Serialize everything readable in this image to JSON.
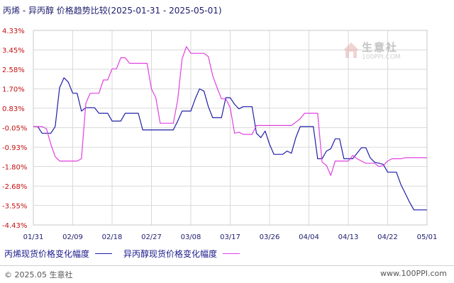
{
  "title": "丙烯 - 异丙醇 价格趋势比较(2025-01-31 - 2025-05-01)",
  "watermark": {
    "name": "生意社",
    "url": "100PPI.COM"
  },
  "footer": {
    "copyright": "© 2025.05 生意社",
    "site": "www.100PPI.com"
  },
  "colors": {
    "series_0": "#1f1fa8",
    "series_1": "#e040e0",
    "grid": "#d9d9d9",
    "ytick": "#c41010",
    "xtick": "#1c1c6e"
  },
  "chart_data": {
    "type": "line",
    "title": "丙烯 - 异丙醇 价格趋势比较(2025-01-31 - 2025-05-01)",
    "ylim": [
      -4.43,
      4.33
    ],
    "yticks": [
      "4.33%",
      "3.45%",
      "2.58%",
      "1.70%",
      "0.83%",
      "-0.05%",
      "-0.93%",
      "-1.80%",
      "-2.68%",
      "-3.55%",
      "-4.43%"
    ],
    "ytick_values": [
      4.33,
      3.45,
      2.58,
      1.7,
      0.83,
      -0.05,
      -0.93,
      -1.8,
      -2.68,
      -3.55,
      -4.43
    ],
    "xrange": [
      "2025-01-31",
      "2025-05-01"
    ],
    "xticks": [
      "01/31",
      "02/09",
      "02/18",
      "02/27",
      "03/08",
      "03/17",
      "03/26",
      "04/04",
      "04/13",
      "04/22",
      "05/01"
    ],
    "xtick_dates": [
      "2025-01-31",
      "2025-02-09",
      "2025-02-18",
      "2025-02-27",
      "2025-03-08",
      "2025-03-17",
      "2025-03-26",
      "2025-04-04",
      "2025-04-13",
      "2025-04-22",
      "2025-05-01"
    ],
    "grid": true,
    "legend_position": "bottom",
    "series": [
      {
        "name": "丙烯现货价格变化幅度",
        "points": [
          [
            "2025-01-31",
            0.0
          ],
          [
            "2025-02-01",
            0.0
          ],
          [
            "2025-02-02",
            -0.3
          ],
          [
            "2025-02-04",
            -0.3
          ],
          [
            "2025-02-05",
            0.0
          ],
          [
            "2025-02-06",
            1.75
          ],
          [
            "2025-02-07",
            2.2
          ],
          [
            "2025-02-08",
            2.0
          ],
          [
            "2025-02-09",
            1.5
          ],
          [
            "2025-02-10",
            1.5
          ],
          [
            "2025-02-11",
            0.7
          ],
          [
            "2025-02-12",
            0.85
          ],
          [
            "2025-02-14",
            0.85
          ],
          [
            "2025-02-15",
            0.6
          ],
          [
            "2025-02-17",
            0.6
          ],
          [
            "2025-02-18",
            0.25
          ],
          [
            "2025-02-20",
            0.25
          ],
          [
            "2025-02-21",
            0.6
          ],
          [
            "2025-02-24",
            0.6
          ],
          [
            "2025-02-25",
            -0.15
          ],
          [
            "2025-03-04",
            -0.15
          ],
          [
            "2025-03-05",
            0.25
          ],
          [
            "2025-03-06",
            0.7
          ],
          [
            "2025-03-08",
            0.7
          ],
          [
            "2025-03-09",
            1.25
          ],
          [
            "2025-03-10",
            1.7
          ],
          [
            "2025-03-11",
            1.6
          ],
          [
            "2025-03-12",
            0.9
          ],
          [
            "2025-03-13",
            0.4
          ],
          [
            "2025-03-15",
            0.4
          ],
          [
            "2025-03-16",
            1.3
          ],
          [
            "2025-03-17",
            1.3
          ],
          [
            "2025-03-18",
            1.0
          ],
          [
            "2025-03-19",
            0.8
          ],
          [
            "2025-03-20",
            0.9
          ],
          [
            "2025-03-22",
            0.9
          ],
          [
            "2025-03-23",
            -0.3
          ],
          [
            "2025-03-24",
            -0.5
          ],
          [
            "2025-03-25",
            -0.2
          ],
          [
            "2025-03-26",
            -0.8
          ],
          [
            "2025-03-27",
            -1.25
          ],
          [
            "2025-03-29",
            -1.25
          ],
          [
            "2025-03-30",
            -1.1
          ],
          [
            "2025-03-31",
            -1.2
          ],
          [
            "2025-04-01",
            -0.5
          ],
          [
            "2025-04-02",
            0.0
          ],
          [
            "2025-04-05",
            0.0
          ],
          [
            "2025-04-06",
            -1.45
          ],
          [
            "2025-04-07",
            -1.45
          ],
          [
            "2025-04-08",
            -1.1
          ],
          [
            "2025-04-09",
            -1.0
          ],
          [
            "2025-04-10",
            -0.55
          ],
          [
            "2025-04-11",
            -0.55
          ],
          [
            "2025-04-12",
            -1.45
          ],
          [
            "2025-04-14",
            -1.45
          ],
          [
            "2025-04-15",
            -1.2
          ],
          [
            "2025-04-16",
            -0.95
          ],
          [
            "2025-04-17",
            -0.95
          ],
          [
            "2025-04-18",
            -1.4
          ],
          [
            "2025-04-19",
            -1.6
          ],
          [
            "2025-04-21",
            -1.7
          ],
          [
            "2025-04-22",
            -2.05
          ],
          [
            "2025-04-24",
            -2.05
          ],
          [
            "2025-04-25",
            -2.6
          ],
          [
            "2025-04-26",
            -3.0
          ],
          [
            "2025-04-27",
            -3.4
          ],
          [
            "2025-04-28",
            -3.75
          ],
          [
            "2025-05-01",
            -3.75
          ]
        ]
      },
      {
        "name": "异丙醇现货价格变化幅度",
        "points": [
          [
            "2025-01-31",
            0.0
          ],
          [
            "2025-02-02",
            0.0
          ],
          [
            "2025-02-03",
            -0.1
          ],
          [
            "2025-02-04",
            -0.8
          ],
          [
            "2025-02-05",
            -1.35
          ],
          [
            "2025-02-06",
            -1.55
          ],
          [
            "2025-02-09",
            -1.55
          ],
          [
            "2025-02-10",
            -1.55
          ],
          [
            "2025-02-11",
            -1.45
          ],
          [
            "2025-02-12",
            1.05
          ],
          [
            "2025-02-13",
            1.5
          ],
          [
            "2025-02-15",
            1.5
          ],
          [
            "2025-02-16",
            2.1
          ],
          [
            "2025-02-17",
            2.1
          ],
          [
            "2025-02-18",
            2.6
          ],
          [
            "2025-02-19",
            2.6
          ],
          [
            "2025-02-20",
            3.1
          ],
          [
            "2025-02-21",
            3.1
          ],
          [
            "2025-02-22",
            2.85
          ],
          [
            "2025-02-26",
            2.85
          ],
          [
            "2025-02-27",
            1.7
          ],
          [
            "2025-02-28",
            1.3
          ],
          [
            "2025-03-01",
            0.15
          ],
          [
            "2025-03-04",
            0.15
          ],
          [
            "2025-03-05",
            1.2
          ],
          [
            "2025-03-06",
            3.05
          ],
          [
            "2025-03-07",
            3.6
          ],
          [
            "2025-03-08",
            3.3
          ],
          [
            "2025-03-11",
            3.3
          ],
          [
            "2025-03-12",
            3.15
          ],
          [
            "2025-03-13",
            2.3
          ],
          [
            "2025-03-14",
            1.75
          ],
          [
            "2025-03-15",
            1.25
          ],
          [
            "2025-03-16",
            1.25
          ],
          [
            "2025-03-17",
            0.85
          ],
          [
            "2025-03-18",
            -0.3
          ],
          [
            "2025-03-19",
            -0.25
          ],
          [
            "2025-03-20",
            -0.35
          ],
          [
            "2025-03-22",
            -0.35
          ],
          [
            "2025-03-23",
            0.05
          ],
          [
            "2025-03-31",
            0.05
          ],
          [
            "2025-04-01",
            0.2
          ],
          [
            "2025-04-02",
            0.35
          ],
          [
            "2025-04-03",
            0.6
          ],
          [
            "2025-04-06",
            0.6
          ],
          [
            "2025-04-07",
            -1.6
          ],
          [
            "2025-04-08",
            -1.75
          ],
          [
            "2025-04-09",
            -2.2
          ],
          [
            "2025-04-10",
            -1.55
          ],
          [
            "2025-04-13",
            -1.55
          ],
          [
            "2025-04-14",
            -1.3
          ],
          [
            "2025-04-15",
            -1.45
          ],
          [
            "2025-04-16",
            -1.55
          ],
          [
            "2025-04-17",
            -1.65
          ],
          [
            "2025-04-19",
            -1.65
          ],
          [
            "2025-04-20",
            -1.8
          ],
          [
            "2025-04-21",
            -1.75
          ],
          [
            "2025-04-22",
            -1.55
          ],
          [
            "2025-04-23",
            -1.45
          ],
          [
            "2025-04-25",
            -1.45
          ],
          [
            "2025-04-26",
            -1.4
          ],
          [
            "2025-05-01",
            -1.4
          ]
        ]
      }
    ]
  }
}
